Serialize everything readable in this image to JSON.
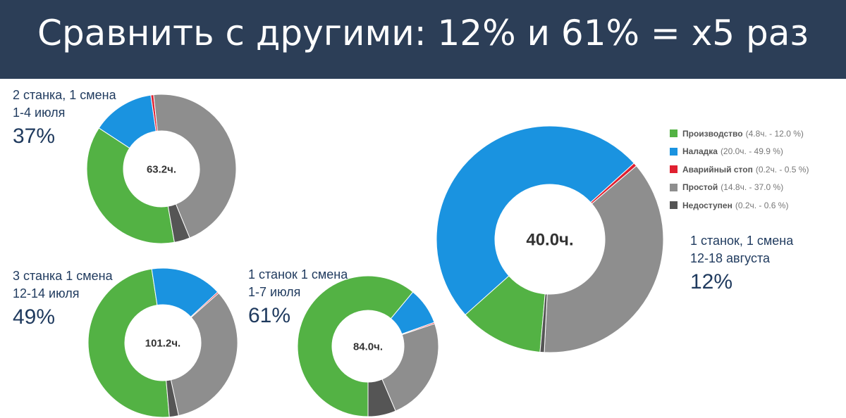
{
  "header": {
    "title": "Сравнить с другими: 12% и 61% = x5 раз"
  },
  "colors": {
    "header_bg": "#2c3e57",
    "production": "#53b244",
    "setup": "#1a93e0",
    "emergency_stop": "#e02030",
    "idle": "#8e8e8e",
    "unavailable": "#555555"
  },
  "legend": {
    "items": [
      {
        "name": "Производство",
        "detail": "(4.8ч. - 12.0 %)",
        "color": "#53b244"
      },
      {
        "name": "Наладка",
        "detail": "(20.0ч. - 49.9 %)",
        "color": "#1a93e0"
      },
      {
        "name": "Аварийный стоп",
        "detail": "(0.2ч. - 0.5 %)",
        "color": "#e02030"
      },
      {
        "name": "Простой",
        "detail": "(14.8ч. - 37.0 %)",
        "color": "#8e8e8e"
      },
      {
        "name": "Недоступен",
        "detail": "(0.2ч. - 0.6 %)",
        "color": "#555555"
      }
    ]
  },
  "captions": {
    "c1": {
      "line1": "2 станка, 1 смена",
      "line2": "1-4 июля",
      "pct": "37%"
    },
    "c2": {
      "line1": "3 станка 1 смена",
      "line2": "12-14 июля",
      "pct": "49%"
    },
    "c3": {
      "line1": "1 станок 1 смена",
      "line2": "1-7 июля",
      "pct": "61%"
    },
    "c4": {
      "line1": "1 станок, 1 смена",
      "line2": "12-18 августа",
      "pct": "12%"
    }
  },
  "chart_data": [
    {
      "type": "pie",
      "center_label": "63.2ч.",
      "labels": [
        "Производство",
        "Наладка",
        "Аварийный стоп",
        "Простой",
        "Недоступен"
      ],
      "values": [
        37,
        13.5,
        0.6,
        45.5,
        3.4
      ]
    },
    {
      "type": "pie",
      "center_label": "101.2ч.",
      "labels": [
        "Производство",
        "Наладка",
        "Аварийный стоп",
        "Простой",
        "Недоступен"
      ],
      "values": [
        49,
        15.5,
        0.3,
        33.2,
        2.0
      ]
    },
    {
      "type": "pie",
      "center_label": "84.0ч.",
      "labels": [
        "Производство",
        "Наладка",
        "Аварийный стоп",
        "Простой",
        "Недоступен"
      ],
      "values": [
        61,
        8.5,
        0.3,
        23.8,
        6.4
      ]
    },
    {
      "type": "pie",
      "center_label": "40.0ч.",
      "labels": [
        "Производство",
        "Наладка",
        "Аварийный стоп",
        "Простой",
        "Недоступен"
      ],
      "values": [
        12.0,
        49.9,
        0.5,
        37.0,
        0.6
      ]
    }
  ]
}
